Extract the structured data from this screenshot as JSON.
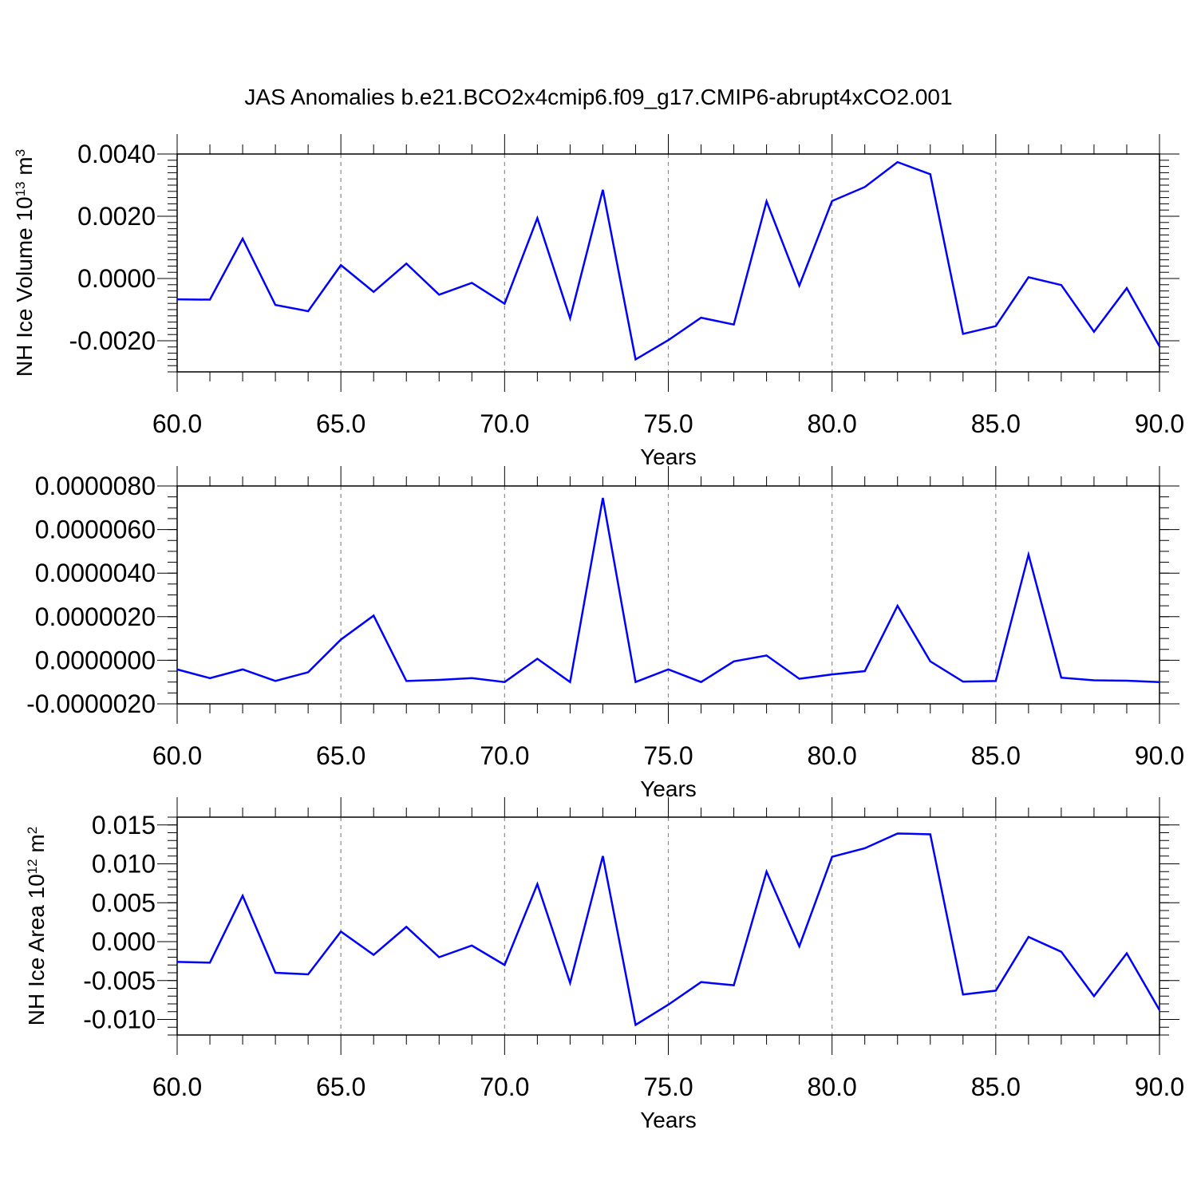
{
  "title": "JAS Anomalies b.e21.BCO2x4cmip6.f09_g17.CMIP6-abrupt4xCO2.001",
  "line_color": "#0000ff",
  "grid_color": "#8c8c8c",
  "chart_data": [
    {
      "type": "line",
      "ylabel": "NH Ice Volume 10",
      "ylabel_exp": "13",
      "ylabel_unit": " m",
      "ylabel_unit_exp": "3",
      "xlabel": "Years",
      "xlim": [
        60,
        90
      ],
      "ylim": [
        -0.003,
        0.004
      ],
      "grid": "vertical dashed at major x ticks",
      "x_ticks": [
        60,
        65,
        70,
        75,
        80,
        85,
        90
      ],
      "x_tick_labels": [
        "60.0",
        "65.0",
        "70.0",
        "75.0",
        "80.0",
        "85.0",
        "90.0"
      ],
      "y_ticks": [
        -0.002,
        0.0,
        0.002,
        0.004
      ],
      "y_tick_labels": [
        "-0.0020",
        "0.0000",
        "0.0020",
        "0.0040"
      ],
      "x": [
        60,
        61,
        62,
        63,
        64,
        65,
        66,
        67,
        68,
        69,
        70,
        71,
        72,
        73,
        74,
        75,
        76,
        77,
        78,
        79,
        80,
        81,
        82,
        83,
        84,
        85,
        86,
        87,
        88,
        89,
        90
      ],
      "series": [
        {
          "values": [
            -0.00067,
            -0.00068,
            0.00128,
            -0.00085,
            -0.00105,
            0.00043,
            -0.00043,
            0.00048,
            -0.00052,
            -0.00014,
            -0.00081,
            0.00194,
            -0.00128,
            0.00285,
            -0.0026,
            -0.00198,
            -0.00126,
            -0.00148,
            0.00248,
            -0.00023,
            0.00249,
            0.00294,
            0.00374,
            0.00335,
            -0.00178,
            -0.00153,
            4e-05,
            -0.00021,
            -0.00171,
            -0.00031,
            -0.00218
          ]
        }
      ]
    },
    {
      "type": "line",
      "ylabel": "",
      "xlabel": "Years",
      "xlim": [
        60,
        90
      ],
      "ylim": [
        -2e-06,
        8e-06
      ],
      "grid": "vertical dashed at major x ticks",
      "x_ticks": [
        60,
        65,
        70,
        75,
        80,
        85,
        90
      ],
      "x_tick_labels": [
        "60.0",
        "65.0",
        "70.0",
        "75.0",
        "80.0",
        "85.0",
        "90.0"
      ],
      "y_ticks": [
        -2e-06,
        0.0,
        2e-06,
        4e-06,
        6e-06,
        8e-06
      ],
      "y_tick_labels": [
        "-0.0000020",
        "0.0000000",
        "0.0000020",
        "0.0000040",
        "0.0000060",
        "0.0000080"
      ],
      "x": [
        60,
        61,
        62,
        63,
        64,
        65,
        66,
        67,
        68,
        69,
        70,
        71,
        72,
        73,
        74,
        75,
        76,
        77,
        78,
        79,
        80,
        81,
        82,
        83,
        84,
        85,
        86,
        87,
        88,
        89,
        90
      ],
      "series": [
        {
          "values": [
            -4.2e-07,
            -8.2e-07,
            -4.2e-07,
            -9.5e-07,
            -5.5e-07,
            9.5e-07,
            2.05e-06,
            -9.5e-07,
            -9e-07,
            -8.2e-07,
            -1e-06,
            7e-08,
            -1e-06,
            7.45e-06,
            -1e-06,
            -4.2e-07,
            -1e-06,
            -5e-08,
            2.2e-07,
            -8.5e-07,
            -6.5e-07,
            -5e-07,
            2.5e-06,
            -5e-08,
            -9.8e-07,
            -9.5e-07,
            4.85e-06,
            -8e-07,
            -9.2e-07,
            -9.4e-07,
            -1e-06
          ]
        }
      ]
    },
    {
      "type": "line",
      "ylabel": "NH Ice Area 10",
      "ylabel_exp": "12",
      "ylabel_unit": " m",
      "ylabel_unit_exp": "2",
      "xlabel": "Years",
      "xlim": [
        60,
        90
      ],
      "ylim": [
        -0.012,
        0.016
      ],
      "grid": "vertical dashed at major x ticks",
      "x_ticks": [
        60,
        65,
        70,
        75,
        80,
        85,
        90
      ],
      "x_tick_labels": [
        "60.0",
        "65.0",
        "70.0",
        "75.0",
        "80.0",
        "85.0",
        "90.0"
      ],
      "y_ticks": [
        -0.01,
        -0.005,
        0.0,
        0.005,
        0.01,
        0.015
      ],
      "y_tick_labels": [
        "-0.010",
        "-0.005",
        "0.000",
        "0.005",
        "0.010",
        "0.015"
      ],
      "x": [
        60,
        61,
        62,
        63,
        64,
        65,
        66,
        67,
        68,
        69,
        70,
        71,
        72,
        73,
        74,
        75,
        76,
        77,
        78,
        79,
        80,
        81,
        82,
        83,
        84,
        85,
        86,
        87,
        88,
        89,
        90
      ],
      "series": [
        {
          "values": [
            -0.0026,
            -0.0027,
            0.0059,
            -0.004,
            -0.0042,
            0.0013,
            -0.0017,
            0.0019,
            -0.002,
            -0.0005,
            -0.003,
            0.0074,
            -0.0053,
            0.011,
            -0.0107,
            -0.0081,
            -0.0052,
            -0.0056,
            0.009,
            -0.0006,
            0.0109,
            0.012,
            0.0139,
            0.0138,
            -0.0068,
            -0.0063,
            0.0006,
            -0.0013,
            -0.007,
            -0.0015,
            -0.0088
          ]
        }
      ]
    }
  ]
}
